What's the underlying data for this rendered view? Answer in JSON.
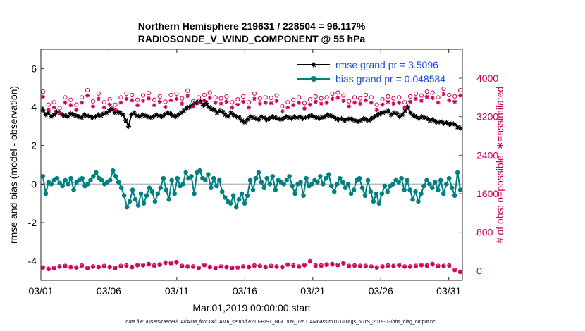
{
  "chart_data": {
    "type": "line",
    "title_line1": "Northern Hemisphere 219631 / 228504 = 96.117%",
    "title_line2": "RADIOSONDE_V_WIND_COMPONENT @ 55 hPa",
    "xlabel": "Mar.01,2019 00:00:00 start",
    "ylabel_left": "rmse and bias (model - observation)",
    "ylabel_right": "# of obs: o=possible; ∗=assimilated",
    "footer": "data file: /Users/raeder/DAI/ATM_forcXX/CAM6_setup/f.e21.FHIST_BGC.f09_025.CAM6assim.011/Diags_NTrS_2019-03/obs_diag_output.nc",
    "x_tick_labels": [
      "03/01",
      "03/06",
      "03/11",
      "03/16",
      "03/21",
      "03/26",
      "03/31"
    ],
    "x_tick_days": [
      1,
      6,
      11,
      16,
      21,
      26,
      31
    ],
    "xlim_days": [
      1,
      32
    ],
    "ylim_left": [
      -5,
      7
    ],
    "y_ticks_left": [
      -4,
      -2,
      0,
      2,
      4,
      6
    ],
    "ylim_right": [
      -200,
      4600
    ],
    "y_ticks_right": [
      0,
      800,
      1600,
      2400,
      3200,
      4000
    ],
    "legend_placement": "top-right",
    "colors": {
      "rmse": "#000000",
      "bias": "#008080",
      "obs": "#cc0055",
      "zero_line": "#bbbbbb",
      "legend_text": "#1f4fdc"
    },
    "series": [
      {
        "name": "rmse grand pr = 3.5096",
        "axis": "left",
        "style": "line-asterisk",
        "values": [
          3.85,
          3.6,
          3.7,
          3.5,
          3.6,
          3.75,
          3.7,
          3.6,
          3.55,
          3.5,
          3.65,
          3.6,
          3.55,
          3.5,
          3.45,
          3.6,
          3.55,
          3.5,
          3.45,
          3.5,
          3.6,
          3.55,
          3.65,
          3.7,
          3.8,
          3.9,
          3.7,
          3.75,
          3.7,
          3.6,
          3.3,
          3.0,
          3.6,
          3.7,
          3.55,
          3.5,
          3.6,
          3.55,
          3.5,
          3.45,
          3.5,
          3.6,
          3.55,
          3.5,
          3.6,
          3.7,
          3.65,
          3.55,
          3.5,
          3.6,
          3.7,
          3.8,
          3.95,
          4.0,
          4.1,
          4.2,
          4.25,
          4.3,
          4.1,
          4.2,
          4.0,
          3.9,
          3.85,
          3.7,
          3.8,
          3.75,
          3.6,
          3.5,
          3.7,
          3.6,
          3.5,
          3.45,
          3.3,
          3.2,
          3.35,
          3.5,
          3.45,
          3.4,
          3.35,
          3.5,
          3.45,
          3.35,
          3.4,
          3.5,
          3.45,
          3.4,
          3.35,
          3.4,
          3.5,
          3.45,
          3.4,
          3.5,
          3.45,
          3.5,
          3.4,
          3.45,
          3.5,
          3.55,
          3.5,
          3.45,
          3.4,
          3.45,
          3.5,
          3.6,
          3.55,
          3.5,
          3.4,
          3.35,
          3.4,
          3.3,
          3.35,
          3.4,
          3.35,
          3.3,
          3.25,
          3.3,
          3.4,
          3.35,
          3.3,
          3.4,
          3.5,
          3.6,
          3.65,
          3.7,
          3.75,
          3.8,
          3.6,
          3.7,
          3.65,
          3.5,
          3.6,
          3.8,
          4.0,
          3.7,
          3.55,
          3.5,
          3.4,
          3.5,
          3.45,
          3.4,
          3.3,
          3.35,
          3.25,
          3.2,
          3.25,
          3.15,
          3.2,
          3.1,
          3.15,
          3.1,
          2.95,
          2.9
        ]
      },
      {
        "name": "bias grand pr = 0.048584",
        "axis": "left",
        "style": "line-circle",
        "values": [
          0.4,
          -0.5,
          0.1,
          0.0,
          0.2,
          0.3,
          0.05,
          -0.1,
          0.2,
          0.0,
          0.3,
          -0.3,
          0.1,
          0.2,
          0.3,
          -0.1,
          0.0,
          0.2,
          0.4,
          0.6,
          0.3,
          0.2,
          0.0,
          0.1,
          0.2,
          0.7,
          0.4,
          0.1,
          -0.2,
          -0.6,
          -1.2,
          -0.9,
          -0.3,
          -0.8,
          -1.1,
          -0.5,
          -1.0,
          -0.6,
          -0.2,
          -0.4,
          -0.9,
          -0.5,
          -0.2,
          0.3,
          -0.3,
          -0.8,
          0.2,
          -0.5,
          0.3,
          -0.1,
          0.0,
          0.6,
          0.3,
          0.4,
          -0.5,
          0.6,
          0.7,
          0.3,
          0.2,
          0.5,
          -0.2,
          0.3,
          -0.1,
          0.2,
          -0.4,
          -0.7,
          -0.9,
          -1.0,
          -0.6,
          -1.2,
          -0.8,
          -0.5,
          -1.0,
          -0.6,
          0.2,
          -0.3,
          0.3,
          0.6,
          0.1,
          -0.2,
          0.3,
          0.0,
          0.4,
          -0.3,
          0.2,
          0.1,
          0.0,
          0.2,
          0.4,
          -0.1,
          -0.5,
          0.0,
          0.1,
          -0.6,
          0.3,
          -0.1,
          0.0,
          0.2,
          0.1,
          0.4,
          0.0,
          0.3,
          0.5,
          -0.1,
          -0.4,
          0.0,
          0.3,
          0.1,
          -0.2,
          0.0,
          -0.5,
          -0.3,
          0.2,
          0.3,
          -0.2,
          -0.6,
          0.2,
          -0.4,
          -0.9,
          -0.5,
          -1.0,
          -0.5,
          -0.1,
          -0.4,
          -0.1,
          0.0,
          0.2,
          0.1,
          0.3,
          -0.3,
          0.2,
          -0.3,
          -0.8,
          -0.4,
          -0.9,
          -0.5,
          -0.1,
          0.2,
          0.0,
          -0.2,
          0.1,
          -0.3,
          0.2,
          -0.5,
          0.0,
          0.3,
          -0.2,
          -0.6,
          0.6,
          -0.3
        ]
      },
      {
        "name": "possible",
        "axis": "right",
        "style": "circle-marker",
        "values": [
          3720,
          3450,
          3500,
          3380,
          3600,
          3550,
          3450,
          3600,
          3750,
          3520,
          3680,
          3500,
          3560,
          3450,
          3600,
          3680,
          3650,
          3550,
          3640,
          3690,
          3550,
          3620,
          3510,
          3650,
          3680,
          3580,
          3740,
          3520,
          3600,
          3650,
          3700,
          3600,
          3580,
          3620,
          3500,
          3560,
          3620,
          3500,
          3680,
          3580,
          3600,
          3590,
          3640,
          3420,
          3500,
          3550,
          3600,
          3480,
          3560,
          3620,
          3580,
          3600,
          3680,
          3700,
          3640,
          3520,
          3600,
          3580,
          3650,
          3600,
          3450,
          3560,
          3620,
          3580,
          3600,
          3500,
          3620,
          3680,
          3640,
          3720,
          3700,
          3600,
          3780,
          3650,
          3620,
          3750
        ]
      },
      {
        "name": "assimilated",
        "axis": "right",
        "style": "asterisk-marker",
        "values": [
          3610,
          3340,
          3390,
          3270,
          3490,
          3440,
          3340,
          3490,
          3640,
          3410,
          3570,
          3390,
          3450,
          3340,
          3490,
          3570,
          3540,
          3440,
          3530,
          3580,
          3440,
          3510,
          3400,
          3540,
          3570,
          3470,
          3630,
          3410,
          3490,
          3540,
          3590,
          3490,
          3470,
          3510,
          3390,
          3450,
          3510,
          3390,
          3570,
          3470,
          3490,
          3480,
          3530,
          3310,
          3390,
          3440,
          3490,
          3370,
          3450,
          3510,
          3470,
          3490,
          3570,
          3590,
          3530,
          3410,
          3490,
          3470,
          3540,
          3490,
          3340,
          3450,
          3510,
          3470,
          3490,
          3390,
          3510,
          3570,
          3530,
          3610,
          3590,
          3490,
          3670,
          3540,
          3510,
          3640
        ]
      },
      {
        "name": "possible-lower",
        "axis": "right",
        "style": "circle-marker",
        "values": [
          70,
          40,
          60,
          90,
          100,
          80,
          70,
          110,
          60,
          90,
          80,
          100,
          80,
          60,
          100,
          110,
          80,
          120,
          120,
          140,
          110,
          130,
          170,
          160,
          180,
          100,
          90,
          90,
          60,
          120,
          80,
          60,
          90,
          80,
          60,
          70,
          90,
          80,
          110,
          100,
          80,
          100,
          90,
          80,
          130,
          110,
          90,
          120,
          200,
          110,
          110,
          130,
          140,
          120,
          160,
          100,
          110,
          100,
          100,
          90,
          70,
          90,
          110,
          100,
          120,
          90,
          90,
          100,
          120,
          110,
          140,
          100,
          100,
          110,
          20,
          -20
        ]
      },
      {
        "name": "assimilated-lower",
        "axis": "right",
        "style": "asterisk-marker",
        "values": [
          60,
          30,
          50,
          80,
          90,
          70,
          60,
          100,
          50,
          80,
          70,
          90,
          70,
          50,
          90,
          100,
          70,
          110,
          110,
          130,
          100,
          120,
          160,
          150,
          170,
          90,
          80,
          80,
          50,
          110,
          70,
          50,
          80,
          70,
          50,
          60,
          80,
          70,
          100,
          90,
          70,
          90,
          80,
          70,
          120,
          100,
          80,
          110,
          190,
          100,
          100,
          120,
          130,
          110,
          150,
          90,
          100,
          90,
          90,
          80,
          60,
          80,
          100,
          90,
          110,
          80,
          80,
          90,
          110,
          100,
          130,
          90,
          90,
          100,
          10,
          -30
        ]
      }
    ]
  }
}
